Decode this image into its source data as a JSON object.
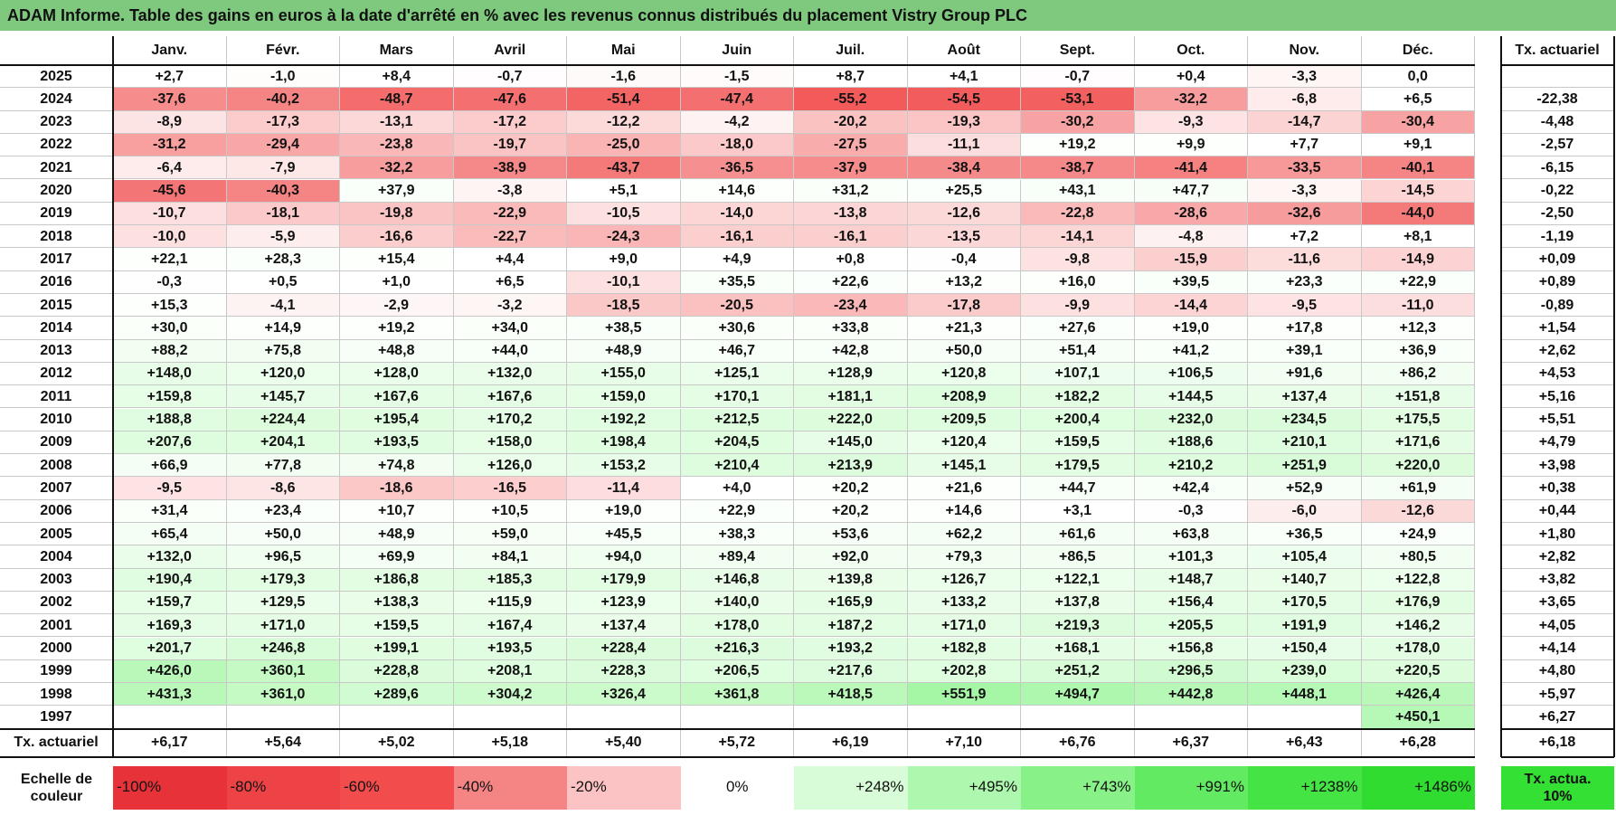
{
  "header": {
    "title": "ADAM Informe. Table des gains en euros à la date d'arrêté en % avec les revenus connus distribués du placement Vistry Group PLC"
  },
  "table": {
    "columns": [
      "Janv.",
      "Févr.",
      "Mars",
      "Avril",
      "Mai",
      "Juin",
      "Juil.",
      "Août",
      "Sept.",
      "Oct.",
      "Nov.",
      "Déc."
    ],
    "rate_header": "Tx. actuariel",
    "rows": [
      {
        "year": "2025",
        "values": [
          "+2,7",
          "-1,0",
          "+8,4",
          "-0,7",
          "-1,6",
          "-1,5",
          "+8,7",
          "+4,1",
          "-0,7",
          "+0,4",
          "-3,3",
          "0,0"
        ],
        "rate": null
      },
      {
        "year": "2024",
        "values": [
          "-37,6",
          "-40,2",
          "-48,7",
          "-47,6",
          "-51,4",
          "-47,4",
          "-55,2",
          "-54,5",
          "-53,1",
          "-32,2",
          "-6,8",
          "+6,5"
        ],
        "rate": "-22,38"
      },
      {
        "year": "2023",
        "values": [
          "-8,9",
          "-17,3",
          "-13,1",
          "-17,2",
          "-12,2",
          "-4,2",
          "-20,2",
          "-19,3",
          "-30,2",
          "-9,3",
          "-14,7",
          "-30,4"
        ],
        "rate": "-4,48"
      },
      {
        "year": "2022",
        "values": [
          "-31,2",
          "-29,4",
          "-23,8",
          "-19,7",
          "-25,0",
          "-18,0",
          "-27,5",
          "-11,1",
          "+19,2",
          "+9,9",
          "+7,7",
          "+9,1"
        ],
        "rate": "-2,57"
      },
      {
        "year": "2021",
        "values": [
          "-6,4",
          "-7,9",
          "-32,2",
          "-38,9",
          "-43,7",
          "-36,5",
          "-37,9",
          "-38,4",
          "-38,7",
          "-41,4",
          "-33,5",
          "-40,1"
        ],
        "rate": "-6,15"
      },
      {
        "year": "2020",
        "values": [
          "-45,6",
          "-40,3",
          "+37,9",
          "-3,8",
          "+5,1",
          "+14,6",
          "+31,2",
          "+25,5",
          "+43,1",
          "+47,7",
          "-3,3",
          "-14,5"
        ],
        "rate": "-0,22"
      },
      {
        "year": "2019",
        "values": [
          "-10,7",
          "-18,1",
          "-19,8",
          "-22,9",
          "-10,5",
          "-14,0",
          "-13,8",
          "-12,6",
          "-22,8",
          "-28,6",
          "-32,6",
          "-44,0"
        ],
        "rate": "-2,50"
      },
      {
        "year": "2018",
        "values": [
          "-10,0",
          "-5,9",
          "-16,6",
          "-22,7",
          "-24,3",
          "-16,1",
          "-16,1",
          "-13,5",
          "-14,1",
          "-4,8",
          "+7,2",
          "+8,1"
        ],
        "rate": "-1,19"
      },
      {
        "year": "2017",
        "values": [
          "+22,1",
          "+28,3",
          "+15,4",
          "+4,4",
          "+9,0",
          "+4,9",
          "+0,8",
          "-0,4",
          "-9,8",
          "-15,9",
          "-11,6",
          "-14,9"
        ],
        "rate": "+0,09"
      },
      {
        "year": "2016",
        "values": [
          "-0,3",
          "+0,5",
          "+1,0",
          "+6,5",
          "-10,1",
          "+35,5",
          "+22,6",
          "+13,2",
          "+16,0",
          "+39,5",
          "+23,3",
          "+22,9"
        ],
        "rate": "+0,89"
      },
      {
        "year": "2015",
        "values": [
          "+15,3",
          "-4,1",
          "-2,9",
          "-3,2",
          "-18,5",
          "-20,5",
          "-23,4",
          "-17,8",
          "-9,9",
          "-14,4",
          "-9,5",
          "-11,0"
        ],
        "rate": "-0,89"
      },
      {
        "year": "2014",
        "values": [
          "+30,0",
          "+14,9",
          "+19,2",
          "+34,0",
          "+38,5",
          "+30,6",
          "+33,8",
          "+21,3",
          "+27,6",
          "+19,0",
          "+17,8",
          "+12,3"
        ],
        "rate": "+1,54"
      },
      {
        "year": "2013",
        "values": [
          "+88,2",
          "+75,8",
          "+48,8",
          "+44,0",
          "+48,9",
          "+46,7",
          "+42,8",
          "+50,0",
          "+51,4",
          "+41,2",
          "+39,1",
          "+36,9"
        ],
        "rate": "+2,62"
      },
      {
        "year": "2012",
        "values": [
          "+148,0",
          "+120,0",
          "+128,0",
          "+132,0",
          "+155,0",
          "+125,1",
          "+128,9",
          "+120,8",
          "+107,1",
          "+106,5",
          "+91,6",
          "+86,2"
        ],
        "rate": "+4,53"
      },
      {
        "year": "2011",
        "values": [
          "+159,8",
          "+145,7",
          "+167,6",
          "+167,6",
          "+159,0",
          "+170,1",
          "+181,1",
          "+208,9",
          "+182,2",
          "+144,5",
          "+137,4",
          "+151,8"
        ],
        "rate": "+5,16"
      },
      {
        "year": "2010",
        "values": [
          "+188,8",
          "+224,4",
          "+195,4",
          "+170,2",
          "+192,2",
          "+212,5",
          "+222,0",
          "+209,5",
          "+200,4",
          "+232,0",
          "+234,5",
          "+175,5"
        ],
        "rate": "+5,51"
      },
      {
        "year": "2009",
        "values": [
          "+207,6",
          "+204,1",
          "+193,5",
          "+158,0",
          "+198,4",
          "+204,5",
          "+145,0",
          "+120,4",
          "+159,5",
          "+188,6",
          "+210,1",
          "+171,6"
        ],
        "rate": "+4,79"
      },
      {
        "year": "2008",
        "values": [
          "+66,9",
          "+77,8",
          "+74,8",
          "+126,0",
          "+153,2",
          "+210,4",
          "+213,9",
          "+145,1",
          "+179,5",
          "+210,2",
          "+251,9",
          "+220,0"
        ],
        "rate": "+3,98"
      },
      {
        "year": "2007",
        "values": [
          "-9,5",
          "-8,6",
          "-18,6",
          "-16,5",
          "-11,4",
          "+4,0",
          "+20,2",
          "+21,6",
          "+44,7",
          "+42,4",
          "+52,9",
          "+61,9"
        ],
        "rate": "+0,38"
      },
      {
        "year": "2006",
        "values": [
          "+31,4",
          "+23,4",
          "+10,7",
          "+10,5",
          "+19,0",
          "+22,9",
          "+20,2",
          "+14,6",
          "+3,1",
          "-0,3",
          "-6,0",
          "-12,6"
        ],
        "rate": "+0,44"
      },
      {
        "year": "2005",
        "values": [
          "+65,4",
          "+50,0",
          "+48,9",
          "+59,0",
          "+45,5",
          "+38,3",
          "+53,6",
          "+62,2",
          "+61,6",
          "+63,8",
          "+36,5",
          "+24,9"
        ],
        "rate": "+1,80"
      },
      {
        "year": "2004",
        "values": [
          "+132,0",
          "+96,5",
          "+69,9",
          "+84,1",
          "+94,0",
          "+89,4",
          "+92,0",
          "+79,3",
          "+86,5",
          "+101,3",
          "+105,4",
          "+80,5"
        ],
        "rate": "+2,82"
      },
      {
        "year": "2003",
        "values": [
          "+190,4",
          "+179,3",
          "+186,8",
          "+185,3",
          "+179,9",
          "+146,8",
          "+139,8",
          "+126,7",
          "+122,1",
          "+148,7",
          "+140,7",
          "+122,8"
        ],
        "rate": "+3,82"
      },
      {
        "year": "2002",
        "values": [
          "+159,7",
          "+129,5",
          "+138,3",
          "+115,9",
          "+123,9",
          "+140,0",
          "+165,9",
          "+133,2",
          "+137,8",
          "+156,4",
          "+170,5",
          "+176,9"
        ],
        "rate": "+3,65"
      },
      {
        "year": "2001",
        "values": [
          "+169,3",
          "+171,0",
          "+159,5",
          "+167,4",
          "+137,4",
          "+178,0",
          "+187,2",
          "+171,0",
          "+219,3",
          "+205,5",
          "+191,9",
          "+146,2"
        ],
        "rate": "+4,05"
      },
      {
        "year": "2000",
        "values": [
          "+201,7",
          "+246,8",
          "+199,1",
          "+193,5",
          "+228,4",
          "+216,3",
          "+193,2",
          "+182,8",
          "+168,1",
          "+156,8",
          "+150,4",
          "+178,0"
        ],
        "rate": "+4,14"
      },
      {
        "year": "1999",
        "values": [
          "+426,0",
          "+360,1",
          "+228,8",
          "+208,1",
          "+228,3",
          "+206,5",
          "+217,6",
          "+202,8",
          "+251,2",
          "+296,5",
          "+239,0",
          "+220,5"
        ],
        "rate": "+4,80"
      },
      {
        "year": "1998",
        "values": [
          "+431,3",
          "+361,0",
          "+289,6",
          "+304,2",
          "+326,4",
          "+361,8",
          "+418,5",
          "+551,9",
          "+494,7",
          "+442,8",
          "+448,1",
          "+426,4"
        ],
        "rate": "+5,97"
      },
      {
        "year": "1997",
        "values": [
          null,
          null,
          null,
          null,
          null,
          null,
          null,
          null,
          null,
          null,
          null,
          "+450,1"
        ],
        "rate": "+6,27"
      }
    ],
    "footer": {
      "label": "Tx. actuariel",
      "values": [
        "+6,17",
        "+5,64",
        "+5,02",
        "+5,18",
        "+5,40",
        "+5,72",
        "+6,19",
        "+7,10",
        "+6,76",
        "+6,37",
        "+6,43",
        "+6,28"
      ],
      "rate": "+6,18"
    }
  },
  "scale": {
    "label": "Echelle de couleur",
    "stops": [
      {
        "label": "-100%",
        "color": "#e8323a"
      },
      {
        "label": "-80%",
        "color": "#ee4346"
      },
      {
        "label": "-60%",
        "color": "#f24c4c"
      },
      {
        "label": "-40%",
        "color": "#f58585"
      },
      {
        "label": "-20%",
        "color": "#fbc3c3"
      },
      {
        "label": "0%",
        "color": "#ffffff"
      },
      {
        "label": "+248%",
        "color": "#d8fcd8"
      },
      {
        "label": "+495%",
        "color": "#aef7ae"
      },
      {
        "label": "+743%",
        "color": "#88f288"
      },
      {
        "label": "+991%",
        "color": "#62eb62"
      },
      {
        "label": "+1238%",
        "color": "#45e445"
      },
      {
        "label": "+1486%",
        "color": "#2fdc2f"
      }
    ],
    "rate_label": "Tx. actua. 10%",
    "rate_color": "#33e033"
  }
}
